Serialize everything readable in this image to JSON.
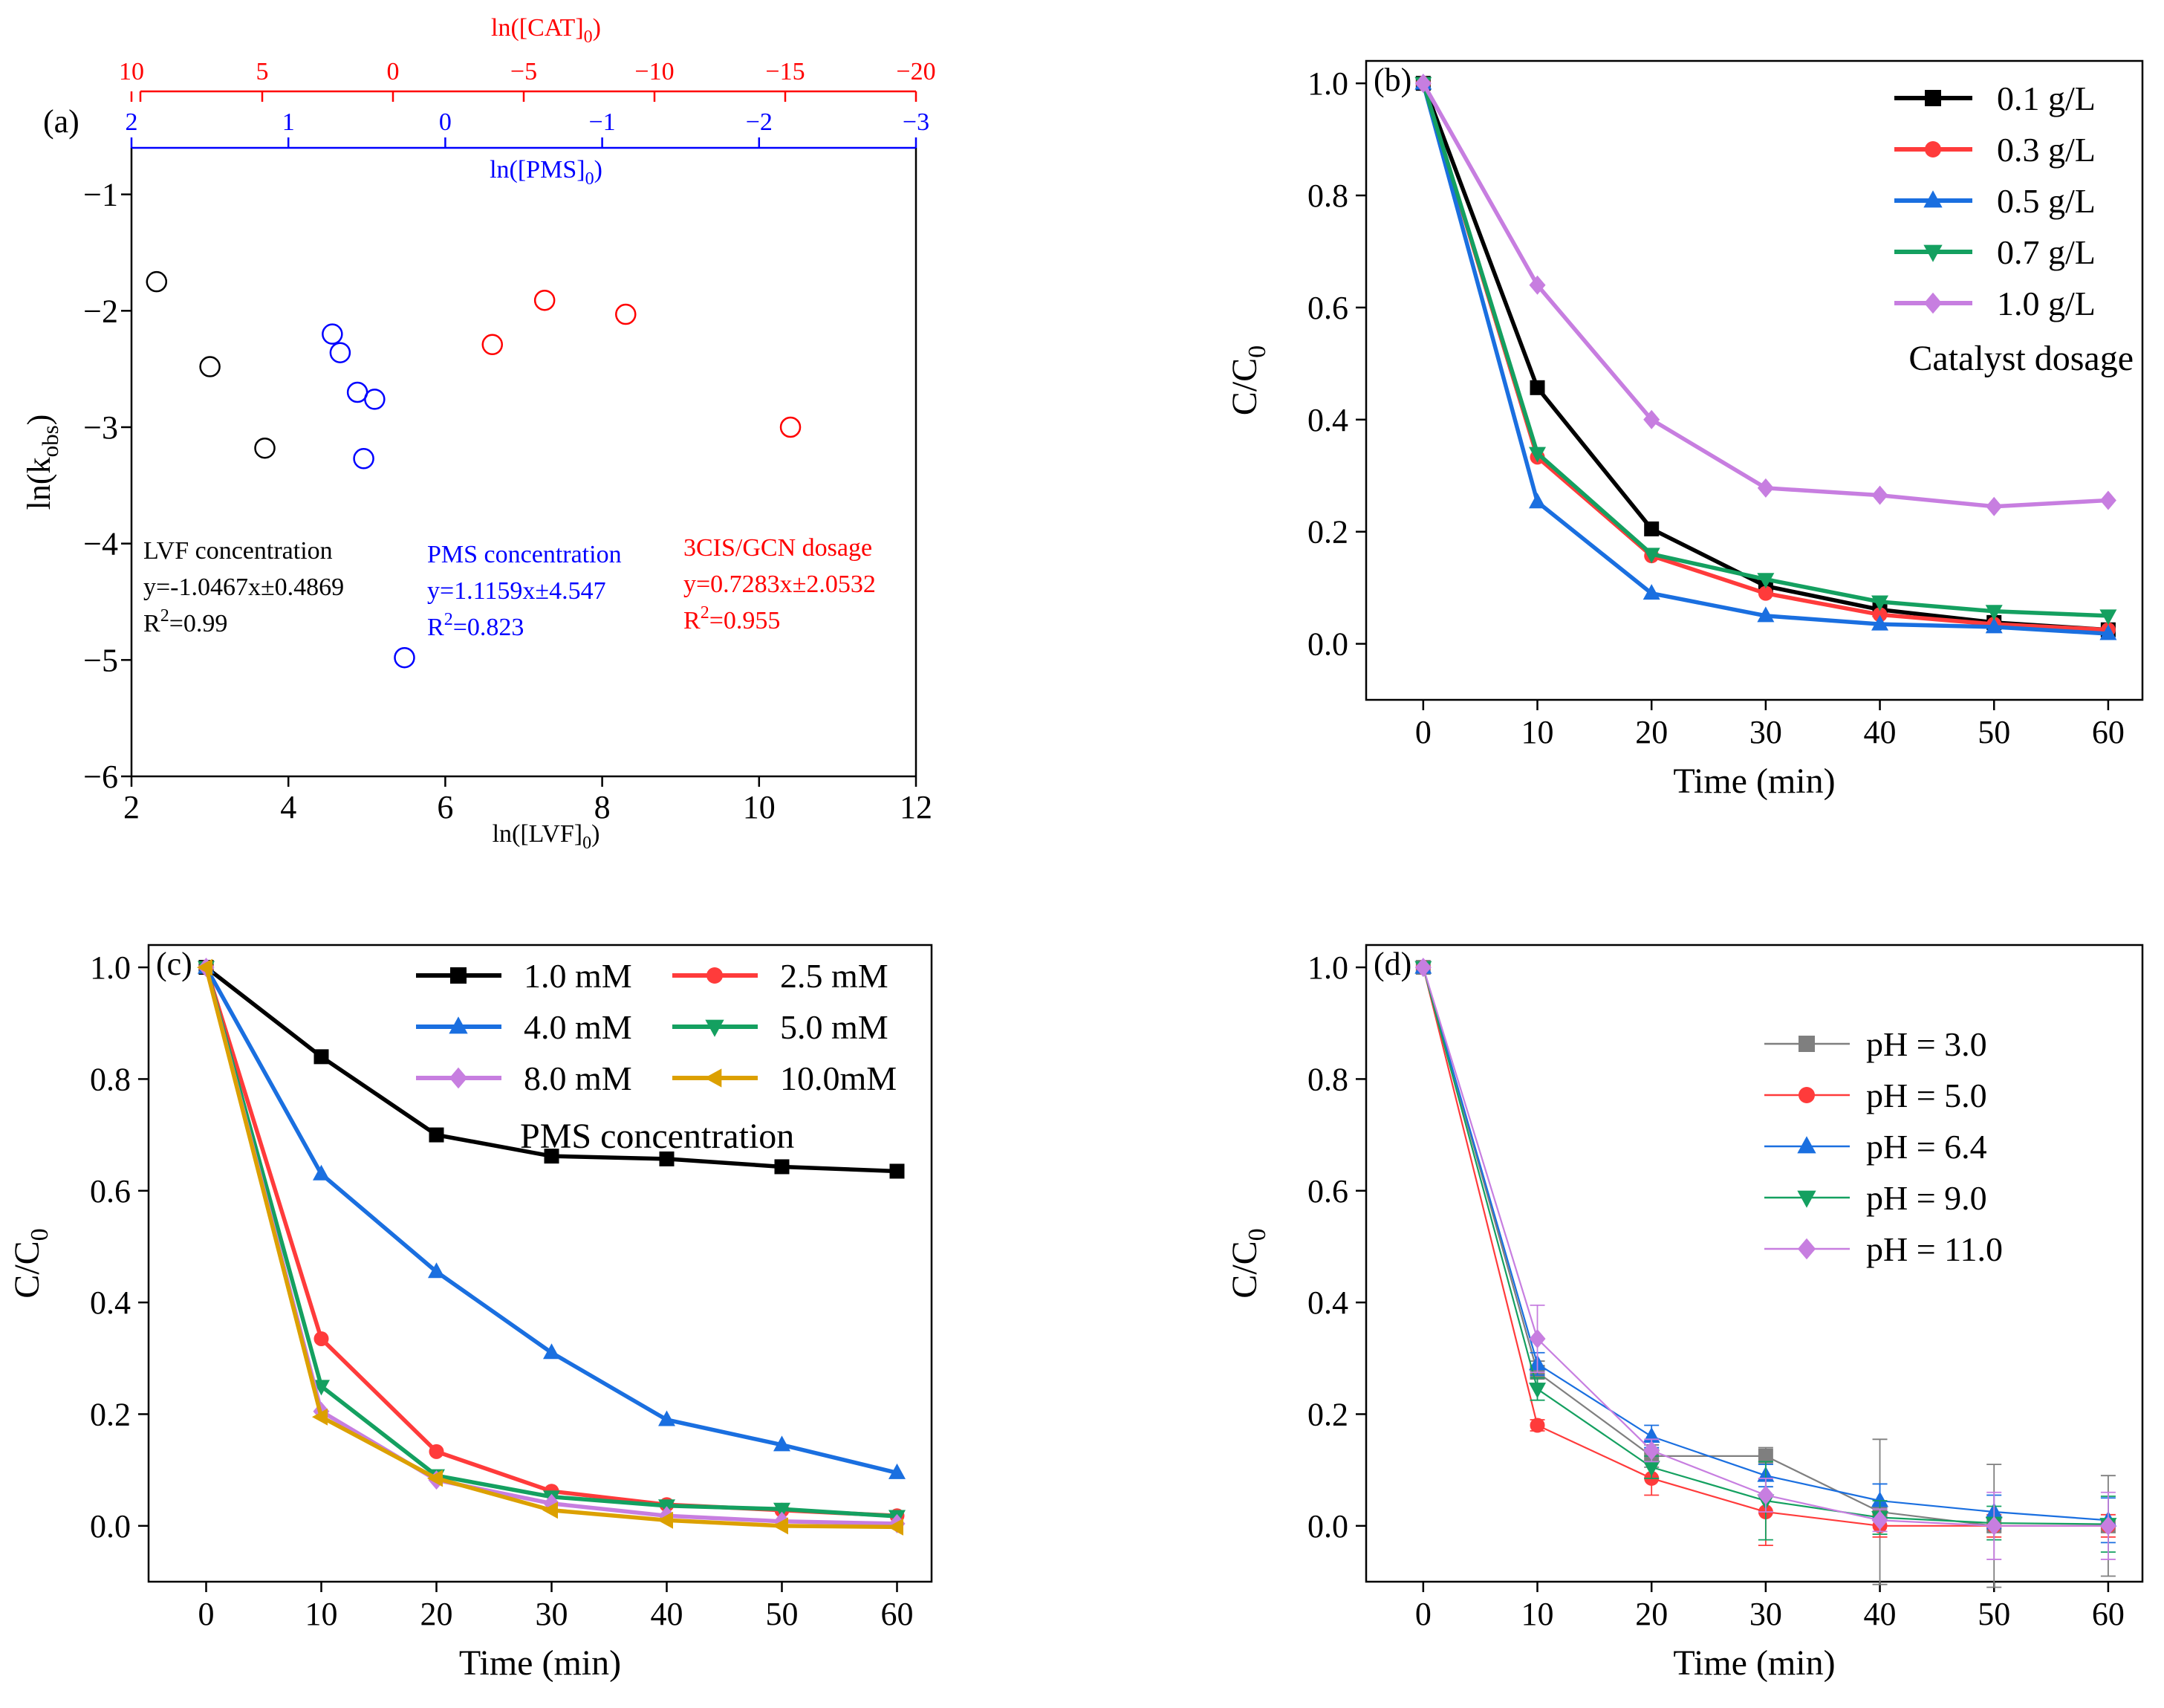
{
  "chart_data": [
    {
      "panel": "(a)",
      "type": "scatter",
      "ylabel": "ln(k",
      "ylabel_sub": "obs",
      "ylabel_tail": ")",
      "ylim": [
        -6,
        -0.6
      ],
      "yticks": [
        -1,
        -2,
        -3,
        -4,
        -5,
        -6
      ],
      "bottom_axis": {
        "label": "ln([LVF]",
        "label_sub": "0",
        "label_tail": ")",
        "lim": [
          2,
          12
        ],
        "ticks": [
          2,
          4,
          6,
          8,
          10,
          12
        ],
        "color": "#000000"
      },
      "blue_axis": {
        "label": "ln([PMS]",
        "label_sub": "0",
        "label_tail": ")",
        "lim": [
          2,
          -3
        ],
        "ticks": [
          2,
          1,
          0,
          -1,
          -2,
          -3
        ],
        "color": "#0000ff"
      },
      "red_axis": {
        "label": "ln([CAT]",
        "label_sub": "0",
        "label_tail": ")",
        "lim": [
          10,
          -20
        ],
        "ticks": [
          10,
          5,
          0,
          -5,
          -10,
          -15,
          -20
        ],
        "color": "#ff0000"
      },
      "series": [
        {
          "name": "LVF concentration",
          "color": "#000000",
          "axis": "bottom",
          "x": [
            2.32,
            3.0,
            3.7
          ],
          "y": [
            -1.75,
            -2.48,
            -3.18
          ],
          "annotation": [
            "LVF concentration",
            "y=-1.0467x±0.4869",
            "R",
            "2",
            "=0.99"
          ]
        },
        {
          "name": "PMS concentration",
          "color": "#0000ff",
          "axis": "blue",
          "x": [
            0.72,
            0.67,
            0.56,
            0.45,
            0.52,
            0.26
          ],
          "y": [
            -2.2,
            -2.36,
            -2.7,
            -2.76,
            -3.27,
            -4.98
          ],
          "annotation": [
            "PMS concentration",
            "y=1.1159x±4.547",
            "R",
            "2",
            "=0.823"
          ]
        },
        {
          "name": "3CIS/GCN dosage",
          "color": "#ff0000",
          "axis": "red",
          "x": [
            -3.8,
            -5.8,
            -8.9,
            -15.2
          ],
          "y": [
            -2.29,
            -1.91,
            -2.03,
            -3.0
          ],
          "annotation": [
            "3CIS/GCN dosage",
            "y=0.7283x±2.0532",
            "R",
            "2",
            "=0.955"
          ]
        }
      ]
    },
    {
      "panel": "(b)",
      "type": "line",
      "xlabel": "Time (min)",
      "ylabel": "C/C",
      "ylabel_sub": "0",
      "x": [
        0,
        10,
        20,
        30,
        40,
        50,
        60
      ],
      "xlim": [
        -5,
        63
      ],
      "ylim": [
        -0.1,
        1.04
      ],
      "xticks": [
        0,
        10,
        20,
        30,
        40,
        50,
        60
      ],
      "yticks": [
        0.0,
        0.2,
        0.4,
        0.6,
        0.8,
        1.0
      ],
      "legend_title": "Catalyst dosage",
      "series": [
        {
          "name": "0.1 g/L",
          "color": "#000000",
          "marker": "square",
          "values": [
            1.0,
            0.457,
            0.205,
            0.103,
            0.061,
            0.038,
            0.025
          ]
        },
        {
          "name": "0.3 g/L",
          "color": "#ff3b3b",
          "marker": "circle",
          "values": [
            1.0,
            0.333,
            0.157,
            0.09,
            0.052,
            0.035,
            0.025
          ]
        },
        {
          "name": "0.5 g/L",
          "color": "#1a6fe0",
          "marker": "triangle-up",
          "values": [
            1.0,
            0.253,
            0.09,
            0.05,
            0.035,
            0.03,
            0.018
          ]
        },
        {
          "name": "0.7 g/L",
          "color": "#14a060",
          "marker": "triangle-down",
          "values": [
            1.0,
            0.34,
            0.16,
            0.115,
            0.075,
            0.058,
            0.05
          ]
        },
        {
          "name": "1.0 g/L",
          "color": "#c77ee0",
          "marker": "diamond",
          "values": [
            1.0,
            0.64,
            0.4,
            0.278,
            0.265,
            0.245,
            0.256
          ]
        }
      ]
    },
    {
      "panel": "(c)",
      "type": "line",
      "xlabel": "Time (min)",
      "ylabel": "C/C",
      "ylabel_sub": "0",
      "x": [
        0,
        10,
        20,
        30,
        40,
        50,
        60
      ],
      "xlim": [
        -5,
        63
      ],
      "ylim": [
        -0.1,
        1.04
      ],
      "xticks": [
        0,
        10,
        20,
        30,
        40,
        50,
        60
      ],
      "yticks": [
        0.0,
        0.2,
        0.4,
        0.6,
        0.8,
        1.0
      ],
      "legend_title": "PMS concentration",
      "series": [
        {
          "name": "1.0 mM",
          "color": "#000000",
          "marker": "square",
          "values": [
            1.0,
            0.84,
            0.7,
            0.662,
            0.657,
            0.643,
            0.635
          ]
        },
        {
          "name": "2.5 mM",
          "color": "#ff3b3b",
          "marker": "circle",
          "values": [
            1.0,
            0.335,
            0.133,
            0.062,
            0.038,
            0.028,
            0.018
          ]
        },
        {
          "name": "4.0 mM",
          "color": "#1a6fe0",
          "marker": "triangle-up",
          "values": [
            1.0,
            0.63,
            0.455,
            0.31,
            0.19,
            0.145,
            0.095
          ]
        },
        {
          "name": "5.0 mM",
          "color": "#14a060",
          "marker": "triangle-down",
          "values": [
            1.0,
            0.25,
            0.09,
            0.052,
            0.036,
            0.03,
            0.017
          ]
        },
        {
          "name": "8.0 mM",
          "color": "#c77ee0",
          "marker": "diamond",
          "values": [
            1.0,
            0.205,
            0.082,
            0.04,
            0.018,
            0.008,
            0.004
          ]
        },
        {
          "name": "10.0mM",
          "color": "#dca000",
          "marker": "triangle-left",
          "values": [
            1.0,
            0.195,
            0.085,
            0.028,
            0.01,
            0.0,
            -0.002
          ]
        }
      ]
    },
    {
      "panel": "(d)",
      "type": "line",
      "xlabel": "Time (min)",
      "ylabel": "C/C",
      "ylabel_sub": "0",
      "x": [
        0,
        10,
        20,
        30,
        40,
        50,
        60
      ],
      "xlim": [
        -5,
        63
      ],
      "ylim": [
        -0.1,
        1.04
      ],
      "xticks": [
        0,
        10,
        20,
        30,
        40,
        50,
        60
      ],
      "yticks": [
        0.0,
        0.2,
        0.4,
        0.6,
        0.8,
        1.0
      ],
      "series": [
        {
          "name": "pH = 3.0",
          "color": "#7f7f7f",
          "marker": "square",
          "values": [
            1.0,
            0.275,
            0.125,
            0.125,
            0.025,
            0.0,
            0.0
          ],
          "errors": [
            0.0,
            0.02,
            0.02,
            0.015,
            0.13,
            0.11,
            0.09
          ]
        },
        {
          "name": "pH = 5.0",
          "color": "#ff3b3b",
          "marker": "circle",
          "values": [
            1.0,
            0.18,
            0.085,
            0.025,
            0.0,
            0.0,
            0.0
          ],
          "errors": [
            0.0,
            0.01,
            0.03,
            0.06,
            0.02,
            0.02,
            0.02
          ]
        },
        {
          "name": "pH = 6.4",
          "color": "#1a6fe0",
          "marker": "triangle-up",
          "values": [
            1.0,
            0.29,
            0.16,
            0.09,
            0.045,
            0.025,
            0.01
          ],
          "errors": [
            0.0,
            0.02,
            0.02,
            0.02,
            0.03,
            0.03,
            0.04
          ]
        },
        {
          "name": "pH = 9.0",
          "color": "#14a060",
          "marker": "triangle-down",
          "values": [
            1.0,
            0.245,
            0.105,
            0.045,
            0.015,
            0.005,
            0.003
          ],
          "errors": [
            0.0,
            0.02,
            0.02,
            0.07,
            0.03,
            0.03,
            0.05
          ]
        },
        {
          "name": "pH = 11.0",
          "color": "#c77ee0",
          "marker": "diamond",
          "values": [
            1.0,
            0.335,
            0.135,
            0.055,
            0.01,
            0.0,
            0.0
          ],
          "errors": [
            0.0,
            0.06,
            0.02,
            0.03,
            0.02,
            0.06,
            0.06
          ]
        }
      ]
    }
  ]
}
